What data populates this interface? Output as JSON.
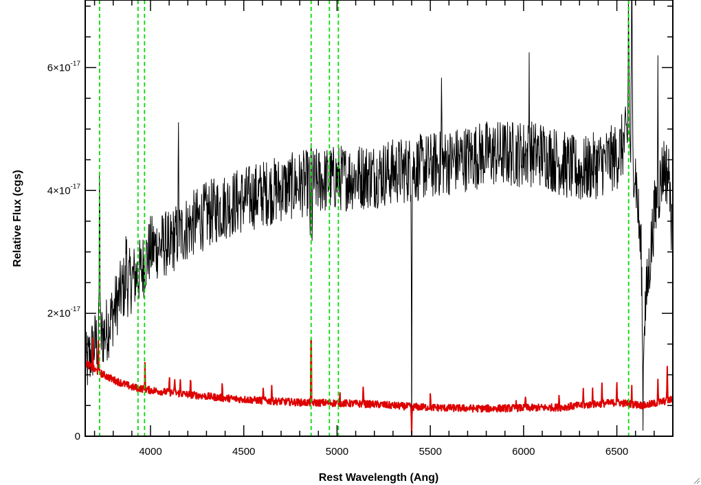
{
  "chart_data": {
    "type": "line",
    "title": "",
    "xlabel": "Rest Wavelength (Ang)",
    "ylabel": "Relative Flux (cgs)",
    "xlim": [
      3650,
      6800
    ],
    "ylim": [
      0,
      7.1e-17
    ],
    "grid": false,
    "x_ticks": [
      {
        "value": 4000,
        "label": "4000"
      },
      {
        "value": 4500,
        "label": "4500"
      },
      {
        "value": 5000,
        "label": "5000"
      },
      {
        "value": 5500,
        "label": "5500"
      },
      {
        "value": 6000,
        "label": "6000"
      },
      {
        "value": 6500,
        "label": "6500"
      }
    ],
    "x_minor_step": 100,
    "y_ticks": [
      {
        "value": 0,
        "label": "0",
        "exponent": ""
      },
      {
        "value": 2e-17,
        "label": "2×10",
        "exponent": "-17"
      },
      {
        "value": 4e-17,
        "label": "4×10",
        "exponent": "-17"
      },
      {
        "value": 6e-17,
        "label": "6×10",
        "exponent": "-17"
      }
    ],
    "y_minor_step": 5e-18,
    "series": [
      {
        "color": "#000000",
        "line_width": 1,
        "anchors": [
          [
            3650,
            1.1e-17
          ],
          [
            3700,
            1.5e-17
          ],
          [
            3760,
            1.7e-17
          ],
          [
            3850,
            2.4e-17
          ],
          [
            3950,
            2.7e-17
          ],
          [
            4000,
            3.05e-17
          ],
          [
            4100,
            3.15e-17
          ],
          [
            4200,
            3.4e-17
          ],
          [
            4300,
            3.6e-17
          ],
          [
            4400,
            3.75e-17
          ],
          [
            4600,
            3.95e-17
          ],
          [
            4800,
            4.1e-17
          ],
          [
            5000,
            4.2e-17
          ],
          [
            5200,
            4.25e-17
          ],
          [
            5500,
            4.4e-17
          ],
          [
            5800,
            4.6e-17
          ],
          [
            6100,
            4.6e-17
          ],
          [
            6300,
            4.3e-17
          ],
          [
            6500,
            4.55e-17
          ],
          [
            6560,
            4.9e-17
          ],
          [
            6600,
            4.3e-17
          ],
          [
            6650,
            2e-17
          ],
          [
            6700,
            3.6e-17
          ],
          [
            6750,
            4.4e-17
          ],
          [
            6800,
            4.1e-17
          ]
        ],
        "noise": 5.5e-18,
        "features": [
          {
            "x": 3727,
            "dy": 3.2e-17,
            "w": 3
          },
          {
            "x": 3870,
            "dy": 8e-18,
            "w": 3
          },
          {
            "x": 4101,
            "dy": -9e-18,
            "w": 3
          },
          {
            "x": 4150,
            "dy": 1.5e-17,
            "w": 3
          },
          {
            "x": 4861,
            "dy": 2.2e-17,
            "w": 3
          },
          {
            "x": 4861,
            "dy": -1.4e-17,
            "w": 8
          },
          {
            "x": 5400,
            "dy": -4.3e-17,
            "w": 2
          },
          {
            "x": 5560,
            "dy": 1.2e-17,
            "w": 3
          },
          {
            "x": 6030,
            "dy": 1.5e-17,
            "w": 3
          },
          {
            "x": 6563,
            "dy": 2.6e-17,
            "w": 4
          },
          {
            "x": 6580,
            "dy": 3e-17,
            "w": 4
          },
          {
            "x": 6640,
            "dy": -1.9e-17,
            "w": 6
          },
          {
            "x": 6720,
            "dy": 2e-17,
            "w": 3
          },
          {
            "x": 6790,
            "dy": -1.3e-17,
            "w": 3
          }
        ]
      },
      {
        "color": "#dd0000",
        "line_width": 2,
        "anchors": [
          [
            3650,
            1.2e-17
          ],
          [
            3700,
            1.08e-17
          ],
          [
            3800,
            9.2e-18
          ],
          [
            3900,
            8e-18
          ],
          [
            4000,
            7.5e-18
          ],
          [
            4200,
            6.8e-18
          ],
          [
            4400,
            6.2e-18
          ],
          [
            4600,
            5.8e-18
          ],
          [
            4800,
            5.5e-18
          ],
          [
            5000,
            5.4e-18
          ],
          [
            5200,
            5.2e-18
          ],
          [
            5400,
            4.8e-18
          ],
          [
            5600,
            4.6e-18
          ],
          [
            5800,
            4.5e-18
          ],
          [
            6000,
            4.6e-18
          ],
          [
            6200,
            4.7e-18
          ],
          [
            6300,
            5e-18
          ],
          [
            6500,
            5.5e-18
          ],
          [
            6650,
            5e-18
          ],
          [
            6800,
            6e-18
          ]
        ],
        "noise": 6e-19,
        "features": [
          {
            "x": 3690,
            "dy": 4.5e-18,
            "w": 2
          },
          {
            "x": 3720,
            "dy": 5.5e-18,
            "w": 2
          },
          {
            "x": 3970,
            "dy": 3.8e-18,
            "w": 2
          },
          {
            "x": 4101,
            "dy": 2.8e-18,
            "w": 2
          },
          {
            "x": 4130,
            "dy": 2.5e-18,
            "w": 2
          },
          {
            "x": 4160,
            "dy": 2.2e-18,
            "w": 2
          },
          {
            "x": 4215,
            "dy": 2.7e-18,
            "w": 2
          },
          {
            "x": 4385,
            "dy": 2.8e-18,
            "w": 2
          },
          {
            "x": 4605,
            "dy": 2.4e-18,
            "w": 2
          },
          {
            "x": 4650,
            "dy": 2.8e-18,
            "w": 2
          },
          {
            "x": 4861,
            "dy": 1.45e-17,
            "w": 2
          },
          {
            "x": 5015,
            "dy": 2e-18,
            "w": 2
          },
          {
            "x": 5140,
            "dy": 3.2e-18,
            "w": 2
          },
          {
            "x": 5400,
            "dy": -5e-18,
            "w": 2
          },
          {
            "x": 5500,
            "dy": 2e-18,
            "w": 2
          },
          {
            "x": 5960,
            "dy": 1.5e-18,
            "w": 2
          },
          {
            "x": 6010,
            "dy": 2e-18,
            "w": 2
          },
          {
            "x": 6190,
            "dy": 2e-18,
            "w": 2
          },
          {
            "x": 6320,
            "dy": 2.5e-18,
            "w": 2
          },
          {
            "x": 6370,
            "dy": 3e-18,
            "w": 2
          },
          {
            "x": 6420,
            "dy": 3e-18,
            "w": 2
          },
          {
            "x": 6500,
            "dy": 3.5e-18,
            "w": 2
          },
          {
            "x": 6580,
            "dy": 2.5e-18,
            "w": 2
          },
          {
            "x": 6720,
            "dy": 4e-18,
            "w": 2
          },
          {
            "x": 6770,
            "dy": 6e-18,
            "w": 2
          }
        ]
      }
    ],
    "reference_lines": {
      "color": "#00dd00",
      "style": "dashed",
      "x": [
        3727,
        3933,
        3968,
        4861,
        4959,
        5007,
        6563
      ]
    }
  }
}
